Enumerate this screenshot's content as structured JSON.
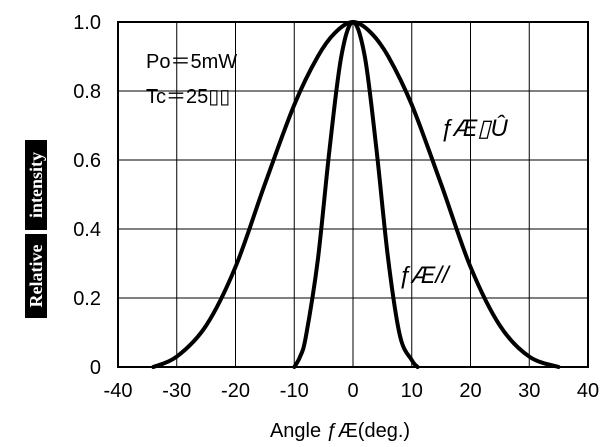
{
  "chart_data": {
    "type": "line",
    "title": "",
    "xlabel": "Angle ƒÆ(deg.)",
    "ylabel_parts": [
      "Relative",
      "intensity"
    ],
    "xlim": [
      -40,
      40
    ],
    "ylim": [
      0,
      1.0
    ],
    "x_ticks": [
      -40,
      -30,
      -20,
      -10,
      0,
      10,
      20,
      30,
      40
    ],
    "x_tick_labels": [
      "-40",
      "-30",
      "-20",
      "-10",
      "0",
      "10",
      "20",
      "30",
      "40"
    ],
    "y_ticks": [
      0,
      0.2,
      0.4,
      0.6,
      0.8,
      1.0
    ],
    "y_tick_labels": [
      "0",
      "0.2",
      "0.4",
      "0.6",
      "0.8",
      "1.0"
    ],
    "grid": true,
    "annotations": [
      "Po＝5mW",
      "Tc＝25▯▯"
    ],
    "series": [
      {
        "name": "ƒÆ▯Û",
        "x": [
          -34,
          -30,
          -25,
          -20,
          -15,
          -10,
          -6,
          -3,
          0,
          3,
          6,
          10,
          15,
          20,
          25,
          30,
          35
        ],
        "y": [
          0.0,
          0.03,
          0.12,
          0.29,
          0.53,
          0.76,
          0.9,
          0.97,
          1.0,
          0.97,
          0.9,
          0.76,
          0.53,
          0.29,
          0.12,
          0.03,
          0.0
        ]
      },
      {
        "name": "ƒÆ//",
        "x": [
          -10,
          -9,
          -8,
          -6,
          -4,
          -2,
          0,
          2,
          4,
          6,
          8,
          10,
          11
        ],
        "y": [
          0.0,
          0.03,
          0.09,
          0.31,
          0.63,
          0.9,
          1.0,
          0.9,
          0.63,
          0.31,
          0.09,
          0.02,
          0.0
        ]
      }
    ]
  }
}
